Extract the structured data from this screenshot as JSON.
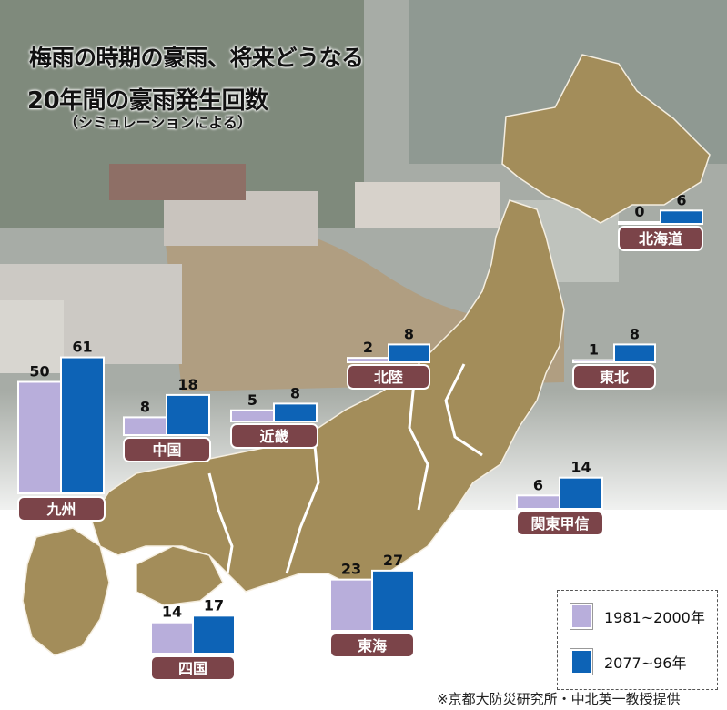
{
  "title": "梅雨の時期の豪雨、将来どうなる",
  "subtitle": "20年間の豪雨発生回数",
  "note": "（シミュレーションによる）",
  "credit": "※京都大防災研究所・中北英一教授提供",
  "colors": {
    "past": "#b8aedb",
    "future": "#0d63b6",
    "label_bg": "#7b4449",
    "map_land": "#a38d5a"
  },
  "legend": [
    {
      "label": "1981~2000年",
      "color": "#b8aedb"
    },
    {
      "label": "2077~96年",
      "color": "#0d63b6"
    }
  ],
  "chart_data": {
    "type": "bar",
    "categories": [
      "九州",
      "中国",
      "四国",
      "近畿",
      "北陸",
      "東海",
      "関東甲信",
      "東北",
      "北海道"
    ],
    "series": [
      {
        "name": "1981~2000年",
        "values": [
          50,
          8,
          14,
          5,
          2,
          23,
          6,
          1,
          0
        ]
      },
      {
        "name": "2077~96年",
        "values": [
          61,
          18,
          17,
          8,
          8,
          27,
          14,
          8,
          6
        ]
      }
    ],
    "ylabel": "",
    "xlabel": "",
    "grid": false,
    "legend_position": "bottom-right"
  }
}
